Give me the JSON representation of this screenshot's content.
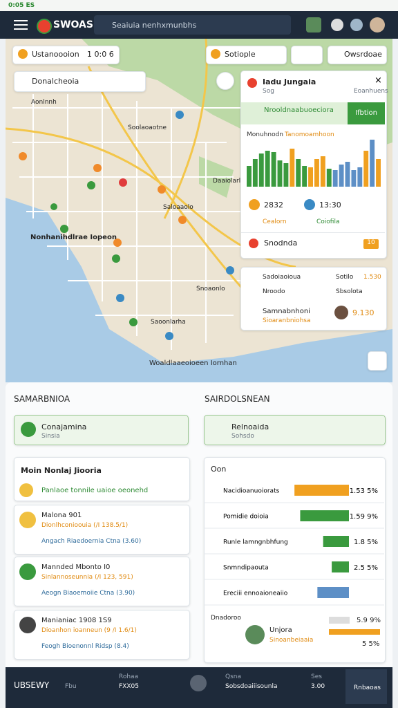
{
  "status": {
    "time": "0:05 ES"
  },
  "header": {
    "logo": "SWOAS",
    "search": "Seaiuia nenhxmunbhs"
  },
  "map": {
    "chip_left": {
      "label": "Ustanoooion",
      "value": "1 0:0 6"
    },
    "chip_mid": {
      "label": "Sotiople"
    },
    "chip_right": {
      "label": "Owsrdoae"
    },
    "dropdown": "Donalcheoia",
    "labels": [
      "Aonlnnh",
      "Soolaoaotne",
      "Daaiolarlan",
      "Nonhanihdlrae Iopeon",
      "Saloaaolo",
      "Snoaonlo",
      "Saoonlarha",
      "Woaldlaaeoioeen Iornhan"
    ]
  },
  "popup": {
    "title": "Iadu Jungaia",
    "subtitle": "Sog",
    "right": "Eoanhuens",
    "banner": "Nrooldnaabuoeciora",
    "button": "Ifbtion",
    "chart_label_left": "Monuhnodn",
    "chart_label_right": "Tanomoamhoon",
    "chart": {
      "values": [
        30,
        40,
        48,
        52,
        50,
        38,
        34,
        55,
        40,
        30,
        28,
        40,
        44,
        26,
        24,
        32,
        36,
        24,
        28,
        52,
        68,
        40
      ],
      "colors": [
        "#3a9a3e",
        "#3a9a3e",
        "#3a9a3e",
        "#3a9a3e",
        "#3a9a3e",
        "#3a9a3e",
        "#3a9a3e",
        "#f0a020",
        "#3a9a3e",
        "#3a9a3e",
        "#f0a020",
        "#f0a020",
        "#f0a020",
        "#3a9a3e",
        "#5d8fc6",
        "#5d8fc6",
        "#5d8fc6",
        "#5d8fc6",
        "#5d8fc6",
        "#f0a020",
        "#5d8fc6",
        "#f0a020"
      ]
    },
    "stat1": "2832",
    "stat2": "13:30",
    "stat3": "Cealorn",
    "stat4": "Coiofila",
    "row": "Snodnda",
    "tag": "10"
  },
  "panel2": {
    "rows": [
      [
        "Sadoiaoioua",
        "Sotilo",
        "1.530"
      ],
      [
        "Nroodo",
        "Sbsolota",
        ""
      ],
      [
        "Samnabnhoni",
        "Sioaranbniohsa",
        "9.130"
      ]
    ]
  },
  "left": {
    "heading": "SAMARBNIOA",
    "card": {
      "title": "Conajamina",
      "sub": "Sinsia"
    },
    "list_title": "Moin Nonlaj Jiooria",
    "list_row": "Panlaoe tonnile uaioe oeonehd",
    "items": [
      {
        "title": "Malona 901",
        "sub": "Dionlhconioouia (/I 138.5/1)",
        "meta": "Angach Riaedoernia Ctna (3.60)"
      },
      {
        "title": "Mannded Mbonto I0",
        "sub": "Sinlannoseunnia (/I 123, 591)",
        "meta": "Aeogn Biaoemoiie Ctna (3.90)"
      },
      {
        "title": "Manianiac 1908 1S9",
        "sub": "Dioanhon ioanneun (9 /I 1.6/1)",
        "meta": "Feogh Bioenonnl Ridsp (8.4)"
      }
    ]
  },
  "right": {
    "heading": "SAIRDOLSNEAN",
    "card": {
      "title": "Relnoaida",
      "sub": "Sohsdo"
    },
    "list_title": "Oon",
    "rows": [
      {
        "label": "Nacidioanuoiorats",
        "value": "1.53 5%",
        "level": 95,
        "color": "#f0a020"
      },
      {
        "label": "Pomidie doioia",
        "value": "1.59 9%",
        "level": 85,
        "color": "#3a9a3e"
      },
      {
        "label": "Runle lamngnbhfung",
        "value": "1.8 5%",
        "level": 45,
        "color": "#3a9a3e"
      },
      {
        "label": "Snmndipaouta",
        "value": "2.5 5%",
        "level": 30,
        "color": "#3a9a3e"
      },
      {
        "label": "Ereciii ennoaioneaiio",
        "value": "",
        "level": 55,
        "color": "#5d8fc6"
      }
    ],
    "person": {
      "label": "Dnadoroo",
      "name": "Unjora",
      "sub": "Sinoanbeiaaia",
      "value1": "5.9 9%",
      "value2": "5 5%"
    }
  },
  "footer": {
    "brand": "UBSEWY",
    "a": "Fbu",
    "b1": "Rohaa",
    "b2": "FXX05",
    "c1": "Qsna",
    "c2": "Sobsdoaiiisounla",
    "d1": "Ses",
    "d2": "3.00",
    "e": "Rnbaoas"
  }
}
